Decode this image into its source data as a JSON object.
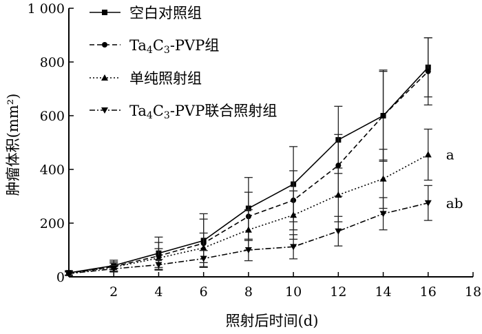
{
  "chart_data": {
    "type": "line",
    "title": "",
    "xlabel": "照射后时间(d)",
    "ylabel": "肿瘤体积(mm²)",
    "xlim": [
      0,
      18
    ],
    "ylim": [
      0,
      1000
    ],
    "xticks": [
      "2",
      "4",
      "6",
      "8",
      "10",
      "12",
      "14",
      "16",
      "18"
    ],
    "yticks": [
      "0",
      "200",
      "400",
      "600",
      "800",
      "1 000"
    ],
    "grid": false,
    "legend_position": "top-left",
    "x": [
      0,
      2,
      4,
      6,
      8,
      10,
      12,
      14,
      16
    ],
    "series": [
      {
        "name": "空白对照组",
        "marker": "square",
        "linestyle": "solid",
        "values": [
          15,
          42,
          88,
          135,
          255,
          345,
          510,
          600,
          780
        ],
        "errors": [
          8,
          20,
          60,
          100,
          115,
          140,
          125,
          165,
          110
        ]
      },
      {
        "name": "Ta4C3-PVP组",
        "name_parts": {
          "a": "Ta",
          "s1": "4",
          "b": "C",
          "s2": "3",
          "c": "-PVP组"
        },
        "marker": "circle",
        "linestyle": "dashed",
        "values": [
          14,
          38,
          78,
          125,
          225,
          285,
          415,
          600,
          765
        ],
        "errors": [
          8,
          18,
          50,
          90,
          90,
          110,
          115,
          170,
          125
        ]
      },
      {
        "name": "单纯照射组",
        "marker": "triangle-up",
        "linestyle": "dotted",
        "values": [
          13,
          36,
          70,
          108,
          175,
          230,
          305,
          365,
          455
        ],
        "errors": [
          8,
          15,
          35,
          55,
          75,
          90,
          100,
          110,
          95
        ]
      },
      {
        "name": "Ta4C3-PVP联合照射组",
        "name_parts": {
          "a": "Ta",
          "s1": "4",
          "b": "C",
          "s2": "3",
          "c": "-PVP联合照射组"
        },
        "marker": "triangle-down",
        "linestyle": "dash-dot",
        "values": [
          12,
          30,
          45,
          68,
          100,
          112,
          170,
          235,
          275
        ],
        "errors": [
          6,
          12,
          20,
          30,
          40,
          45,
          55,
          60,
          65
        ]
      }
    ],
    "annotations": [
      {
        "text": "a",
        "x": 16,
        "y": 455
      },
      {
        "text": "ab",
        "x": 16,
        "y": 275
      }
    ]
  }
}
